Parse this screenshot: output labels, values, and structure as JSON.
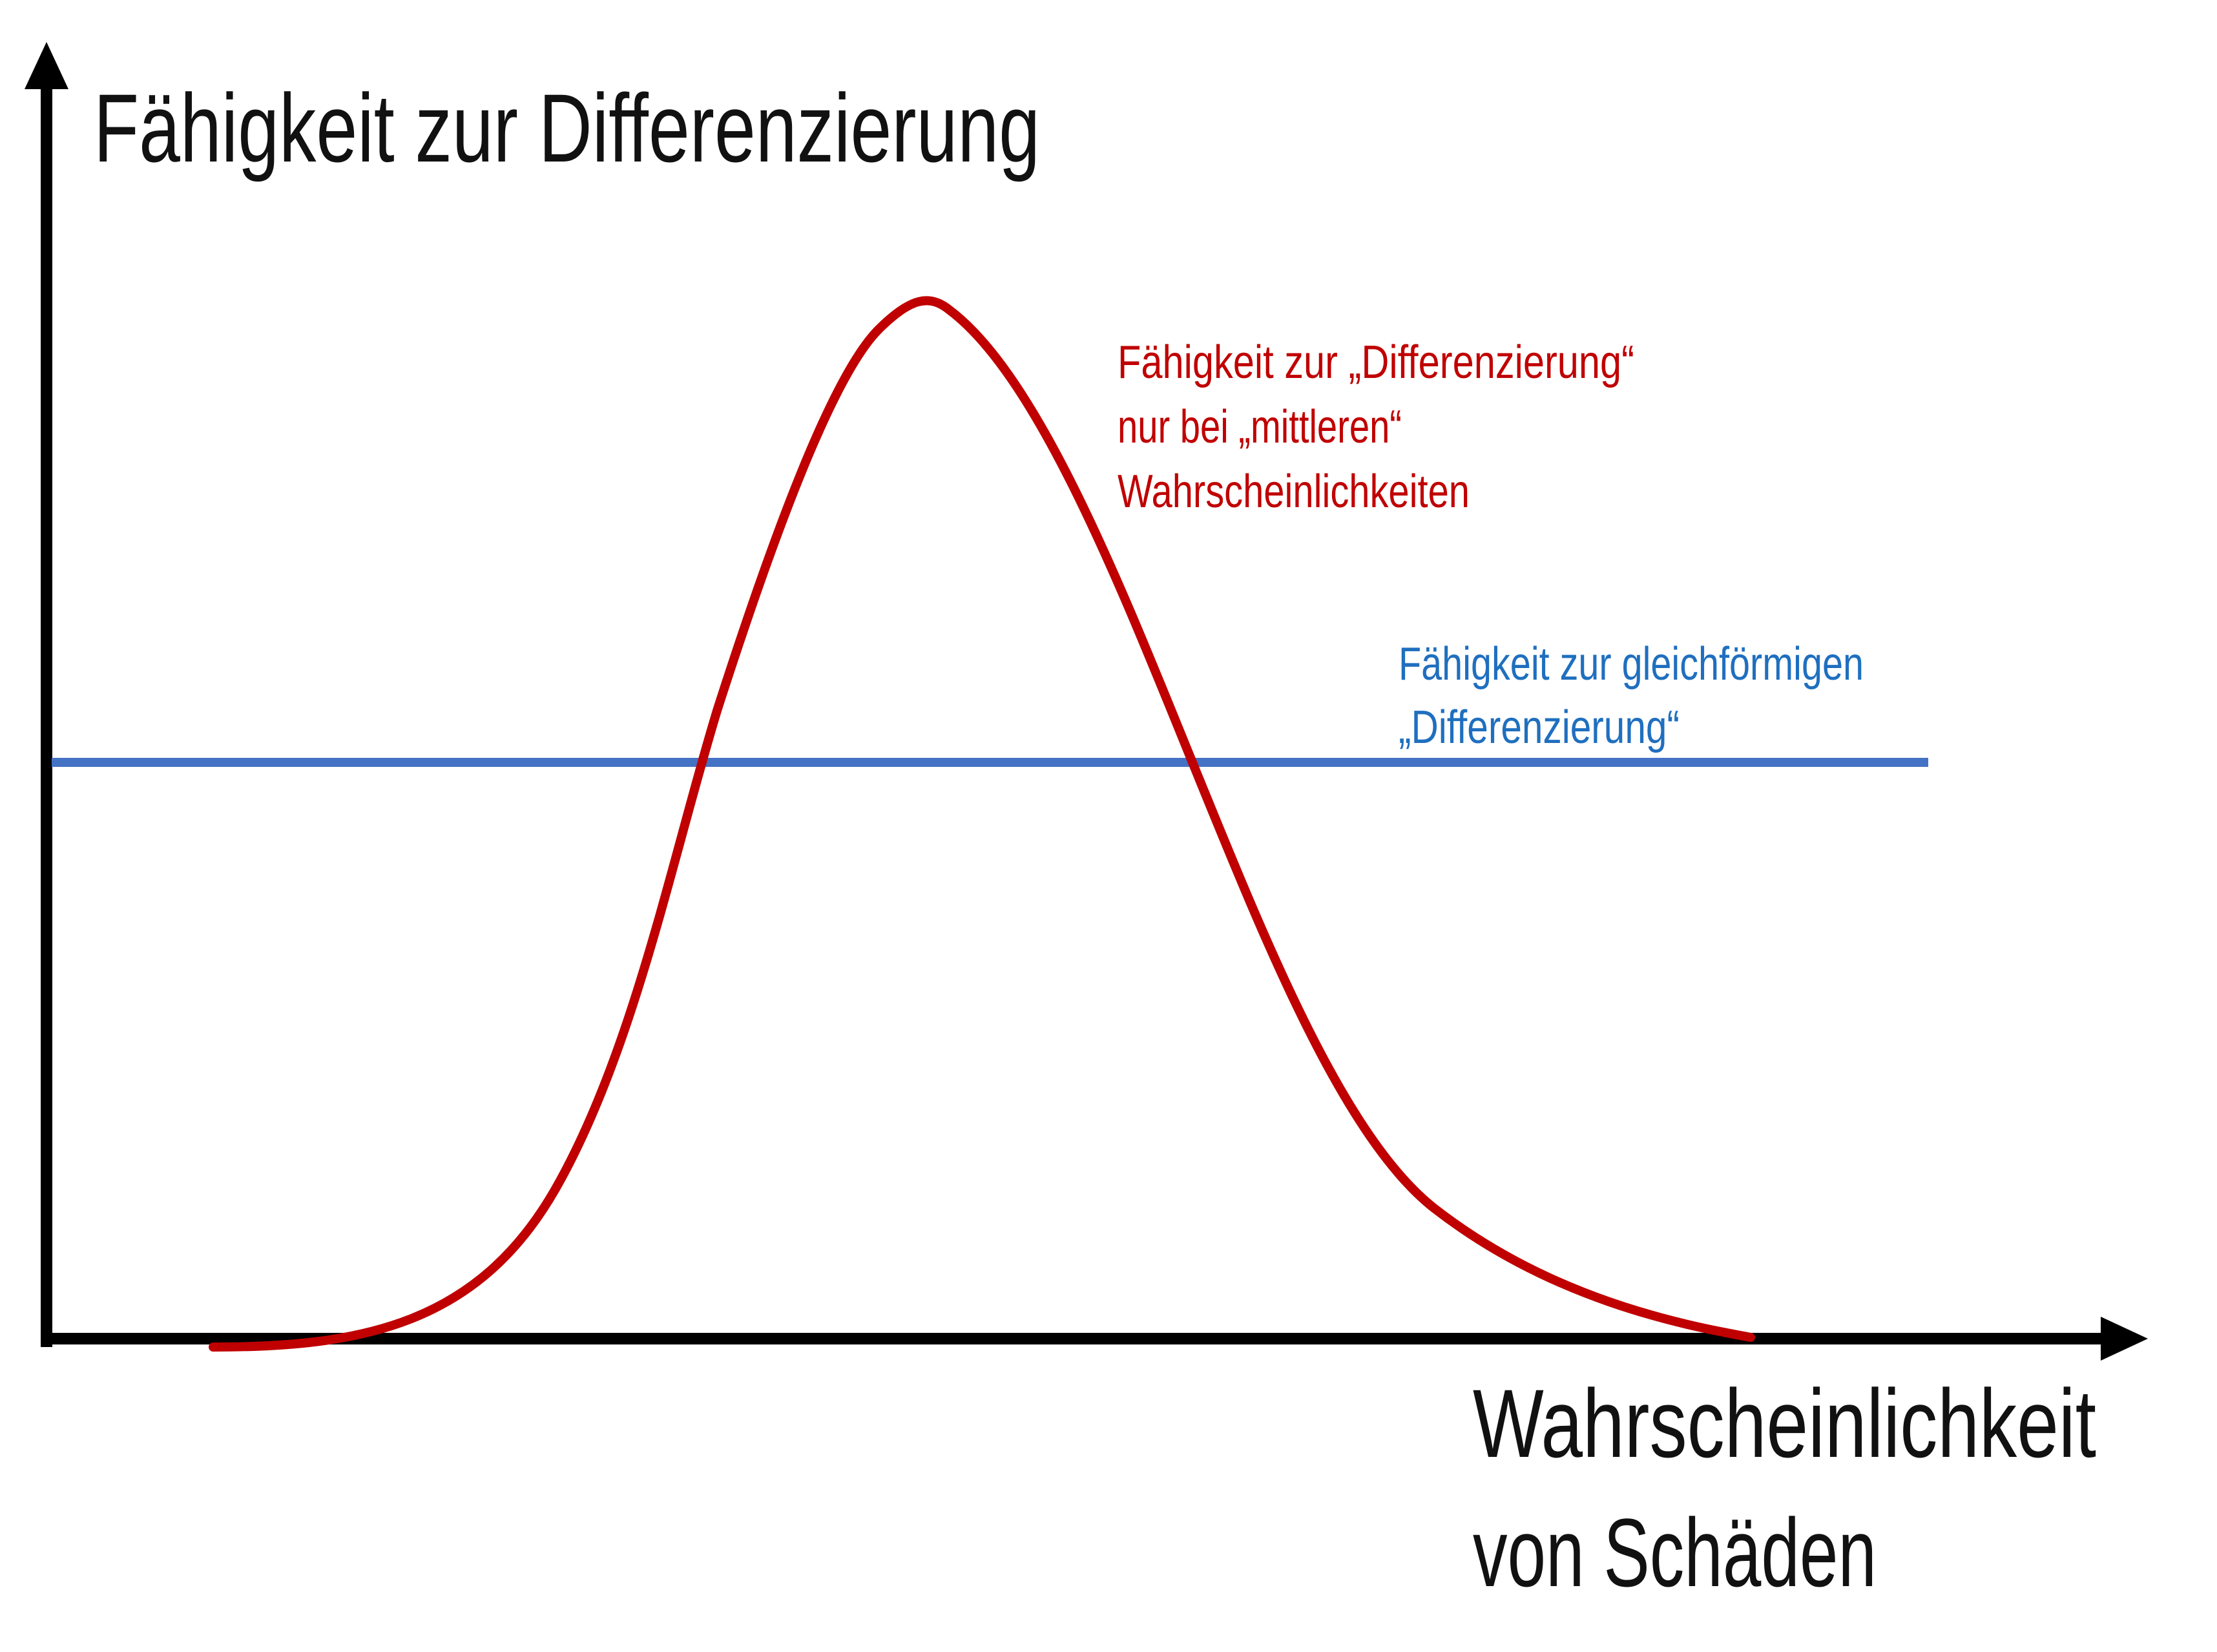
{
  "diagram": {
    "y_axis_label": "Fähigkeit zur Differenzierung",
    "x_axis_label_line1": "Wahrscheinlichkeit",
    "x_axis_label_line2": "von Schäden",
    "curve_note": {
      "line1": "Fähigkeit zur „Differenzierung“",
      "line2": "nur bei „mittleren“",
      "line3": "Wahrscheinlichkeiten"
    },
    "uniform_note": {
      "line1": "Fähigkeit zur gleichförmigen",
      "line2": "„Differenzierung“"
    }
  },
  "colors": {
    "axis": "#000000",
    "bell_curve": "#c00000",
    "uniform_line": "#4472c4",
    "uniform_text": "#1f6fbf",
    "curve_text": "#c00000"
  }
}
